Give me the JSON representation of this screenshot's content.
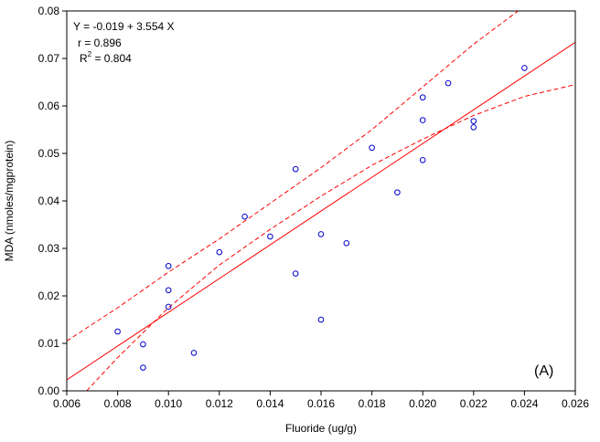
{
  "chart_data": {
    "type": "scatter",
    "xlabel": "Fluoride (ug/g)",
    "ylabel": "MDA (nmoles/mgprotein)",
    "xlim": [
      0.006,
      0.026
    ],
    "ylim": [
      0.0,
      0.08
    ],
    "x_ticks": [
      "0.006",
      "0.008",
      "0.010",
      "0.012",
      "0.014",
      "0.016",
      "0.018",
      "0.020",
      "0.022",
      "0.024",
      "0.026"
    ],
    "y_ticks": [
      "0.00",
      "0.01",
      "0.02",
      "0.03",
      "0.04",
      "0.05",
      "0.06",
      "0.07",
      "0.08"
    ],
    "grid": false,
    "points": [
      {
        "x": 0.008,
        "y": 0.0125
      },
      {
        "x": 0.009,
        "y": 0.0098
      },
      {
        "x": 0.009,
        "y": 0.0049
      },
      {
        "x": 0.01,
        "y": 0.0263
      },
      {
        "x": 0.01,
        "y": 0.0212
      },
      {
        "x": 0.01,
        "y": 0.0177
      },
      {
        "x": 0.011,
        "y": 0.008
      },
      {
        "x": 0.012,
        "y": 0.0292
      },
      {
        "x": 0.013,
        "y": 0.0367
      },
      {
        "x": 0.014,
        "y": 0.0325
      },
      {
        "x": 0.015,
        "y": 0.0467
      },
      {
        "x": 0.015,
        "y": 0.0247
      },
      {
        "x": 0.016,
        "y": 0.033
      },
      {
        "x": 0.016,
        "y": 0.015
      },
      {
        "x": 0.017,
        "y": 0.0311
      },
      {
        "x": 0.018,
        "y": 0.0512
      },
      {
        "x": 0.019,
        "y": 0.0418
      },
      {
        "x": 0.02,
        "y": 0.0618
      },
      {
        "x": 0.02,
        "y": 0.057
      },
      {
        "x": 0.02,
        "y": 0.0486
      },
      {
        "x": 0.021,
        "y": 0.0648
      },
      {
        "x": 0.022,
        "y": 0.0568
      },
      {
        "x": 0.022,
        "y": 0.0555
      },
      {
        "x": 0.024,
        "y": 0.068
      }
    ],
    "fit": {
      "intercept": -0.019,
      "slope": 3.554
    },
    "confidence_band": [
      {
        "x": 0.006,
        "lower": -0.0045,
        "upper": 0.0105
      },
      {
        "x": 0.008,
        "lower": 0.007,
        "upper": 0.0175
      },
      {
        "x": 0.01,
        "lower": 0.0175,
        "upper": 0.025
      },
      {
        "x": 0.012,
        "lower": 0.0265,
        "upper": 0.032
      },
      {
        "x": 0.014,
        "lower": 0.034,
        "upper": 0.0395
      },
      {
        "x": 0.016,
        "lower": 0.041,
        "upper": 0.047
      },
      {
        "x": 0.018,
        "lower": 0.0475,
        "upper": 0.055
      },
      {
        "x": 0.02,
        "lower": 0.053,
        "upper": 0.064
      },
      {
        "x": 0.022,
        "lower": 0.058,
        "upper": 0.073
      },
      {
        "x": 0.024,
        "lower": 0.062,
        "upper": 0.081
      },
      {
        "x": 0.026,
        "lower": 0.0645,
        "upper": 0.0875
      }
    ],
    "annotations": {
      "equation": "Y = -0.019 + 3.554 X",
      "r": "r = 0.896",
      "r2_prefix": "R",
      "r2_sup": "2",
      "r2_value": " = 0.804"
    },
    "panel_label": "(A)",
    "colors": {
      "points": "#0000cc",
      "fit": "#ff0000",
      "band": "#ff0000",
      "axes": "#000000"
    }
  }
}
